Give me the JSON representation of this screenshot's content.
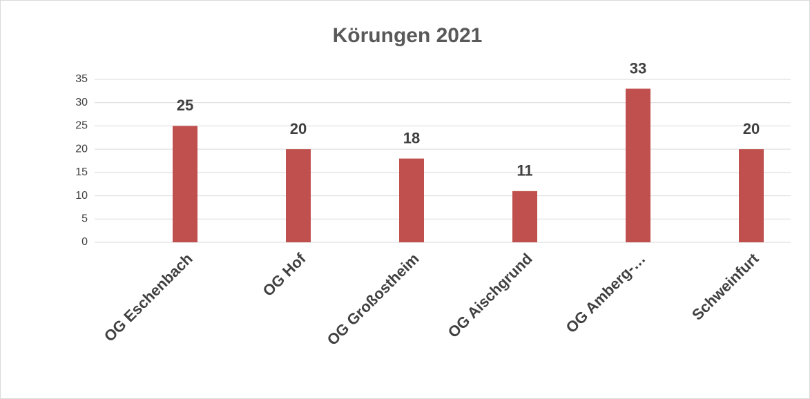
{
  "chart_data": {
    "type": "bar",
    "title": "Körungen 2021",
    "categories": [
      "OG Eschenbach",
      "OG Hof",
      "OG Großostheim",
      "OG Aischgrund",
      "OG Amberg-…",
      "Schweinfurt"
    ],
    "values": [
      25,
      20,
      18,
      11,
      33,
      20
    ],
    "color": "#c0504d",
    "ylim": [
      0,
      35
    ],
    "yticks": [
      0,
      5,
      10,
      15,
      20,
      25,
      30,
      35
    ],
    "grid": true
  }
}
